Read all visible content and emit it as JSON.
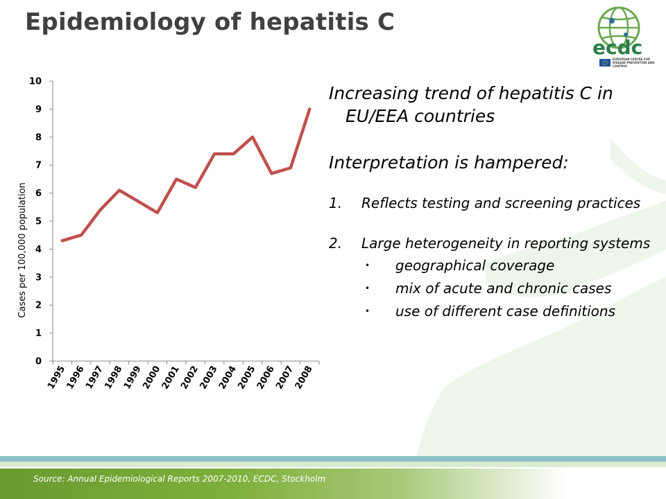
{
  "slide": {
    "title": "Epidemiology of hepatitis C",
    "source": "Source: Annual Epidemiological Reports 2007-2010, ECDC, Stockholm"
  },
  "logo": {
    "text": "ecdc",
    "org_name": "EUROPEAN CENTRE FOR DISEASE PREVENTION AND CONTROL",
    "icon": "globe-icon"
  },
  "text_panel": {
    "headline1": "Increasing trend of hepatitis C in EU/EEA countries",
    "headline2": "Interpretation is hampered:",
    "points": [
      {
        "num": "1.",
        "text": "Reflects testing and screening practices"
      },
      {
        "num": "2.",
        "text": "Large heterogeneity in reporting systems"
      }
    ],
    "bullet_glyph": "•",
    "sub_points": [
      "geographical coverage",
      "mix of acute and chronic cases",
      "use of different case definitions"
    ]
  },
  "colors": {
    "series_line": "#c0504d",
    "title": "#404040",
    "footer_green": "#7fb03b",
    "footer_teal": "#8fc3c8"
  },
  "chart_data": {
    "type": "line",
    "title": "",
    "xlabel": "",
    "ylabel": "Cases per 100,000 population",
    "categories": [
      "1995",
      "1996",
      "1997",
      "1998",
      "1999",
      "2000",
      "2001",
      "2002",
      "2003",
      "2004",
      "2005",
      "2006",
      "2007",
      "2008"
    ],
    "series": [
      {
        "values": [
          4.3,
          4.5,
          5.4,
          6.1,
          5.7,
          5.3,
          6.5,
          6.2,
          7.4,
          7.4,
          8.0,
          6.7,
          6.9,
          9.0
        ]
      }
    ],
    "ylim": [
      0,
      10
    ],
    "yticks": [
      0,
      1,
      2,
      3,
      4,
      5,
      6,
      7,
      8,
      9,
      10
    ],
    "grid": false,
    "legend": "none"
  }
}
